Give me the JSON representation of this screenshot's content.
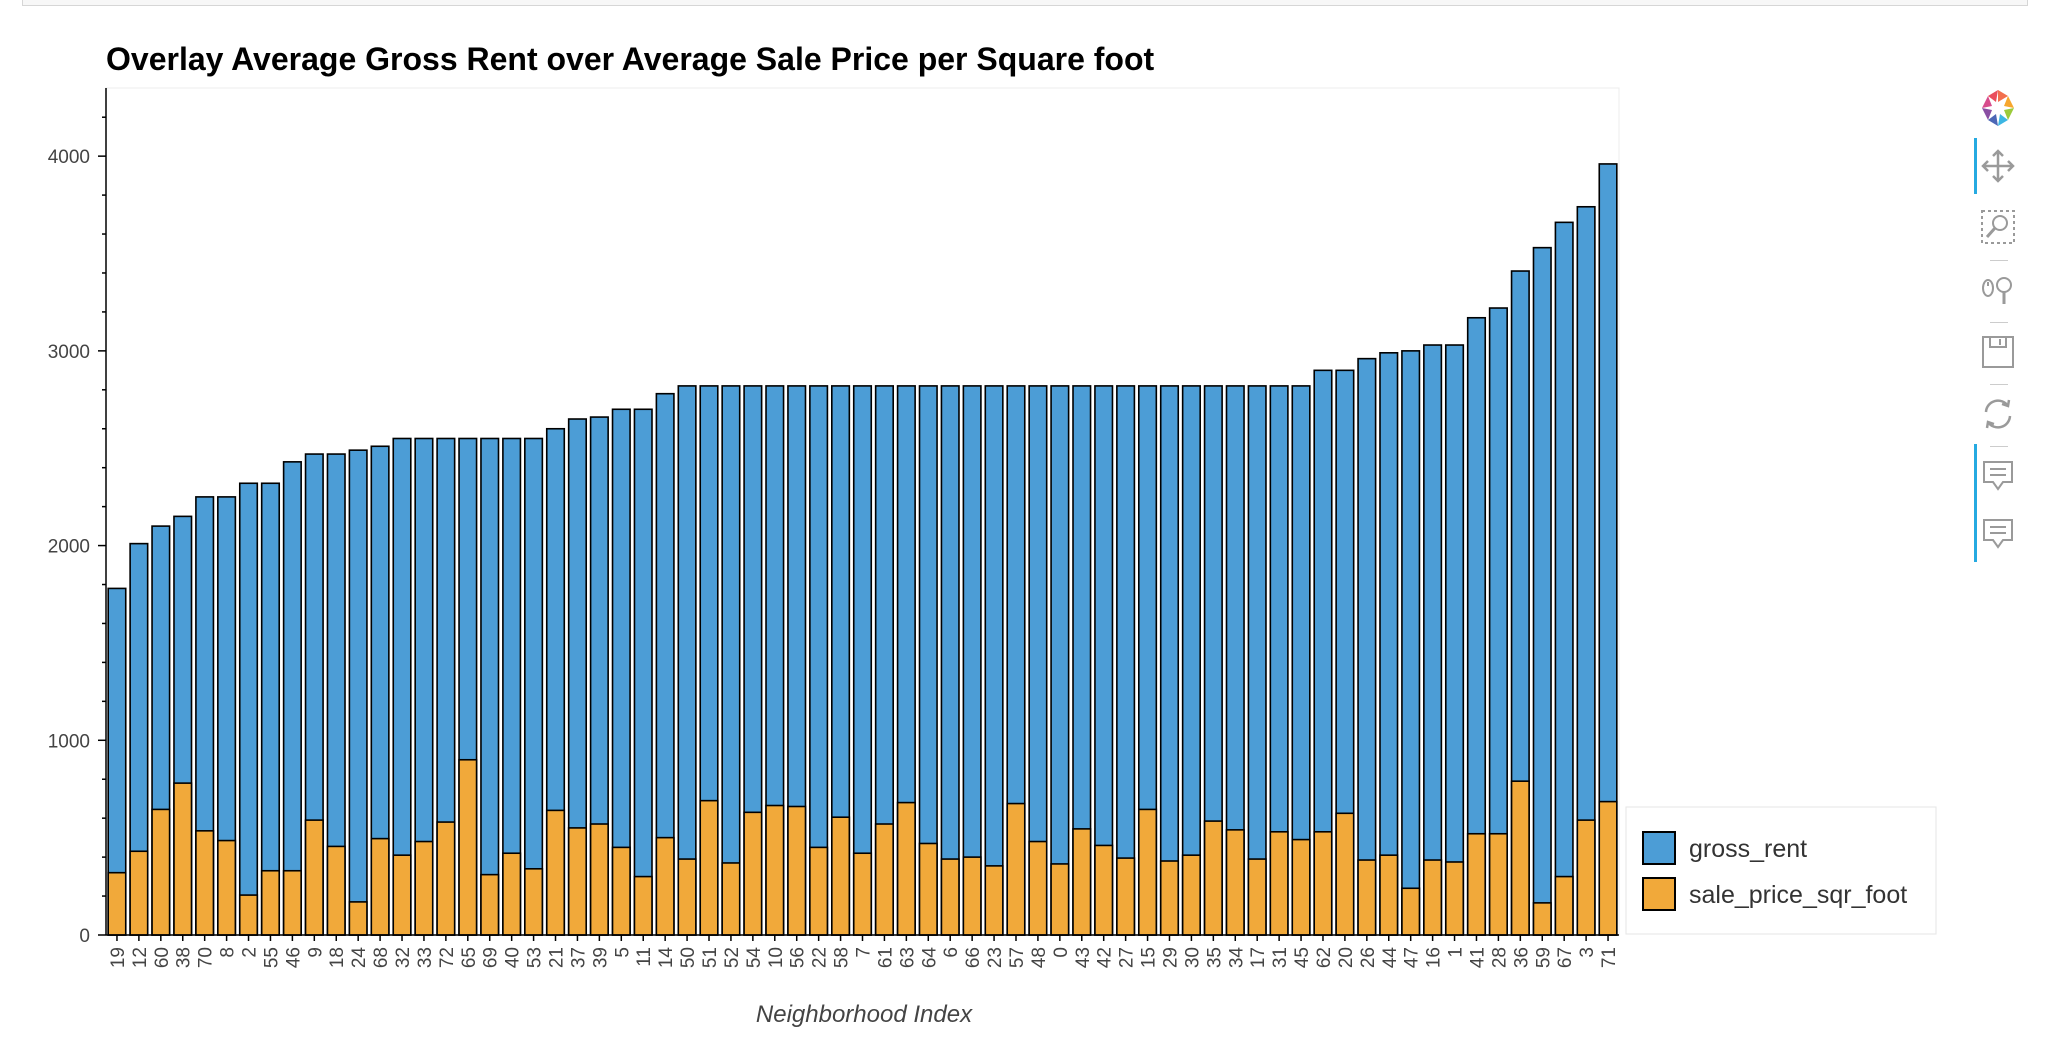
{
  "chart_data": {
    "type": "bar",
    "title": "Overlay Average Gross Rent over Average Sale Price per Square foot",
    "xlabel": "Neighborhood Index",
    "ylabel": "",
    "ylim": [
      0,
      4350
    ],
    "yticks": [
      0,
      1000,
      2000,
      3000,
      4000
    ],
    "grid": false,
    "legend_position": "bottom-right",
    "categories": [
      "19",
      "12",
      "60",
      "38",
      "70",
      "8",
      "2",
      "55",
      "46",
      "9",
      "18",
      "24",
      "68",
      "32",
      "33",
      "72",
      "65",
      "69",
      "40",
      "53",
      "21",
      "37",
      "39",
      "5",
      "11",
      "14",
      "50",
      "51",
      "52",
      "54",
      "10",
      "56",
      "22",
      "58",
      "7",
      "61",
      "63",
      "64",
      "6",
      "66",
      "23",
      "57",
      "48",
      "0",
      "43",
      "42",
      "27",
      "15",
      "29",
      "30",
      "35",
      "34",
      "17",
      "31",
      "45",
      "62",
      "20",
      "26",
      "44",
      "47",
      "16",
      "1",
      "41",
      "28",
      "36",
      "59",
      "67",
      "3",
      "71"
    ],
    "series": [
      {
        "name": "gross_rent",
        "color": "#4c9dd6",
        "values": [
          1780,
          2010,
          2100,
          2150,
          2250,
          2250,
          2320,
          2320,
          2430,
          2470,
          2470,
          2490,
          2510,
          2550,
          2550,
          2550,
          2550,
          2550,
          2550,
          2550,
          2600,
          2650,
          2660,
          2700,
          2700,
          2780,
          2820,
          2820,
          2820,
          2820,
          2820,
          2820,
          2820,
          2820,
          2820,
          2820,
          2820,
          2820,
          2820,
          2820,
          2820,
          2820,
          2820,
          2820,
          2820,
          2820,
          2820,
          2820,
          2820,
          2820,
          2820,
          2820,
          2820,
          2820,
          2820,
          2900,
          2900,
          2960,
          2990,
          3000,
          3030,
          3030,
          3170,
          3220,
          3410,
          3530,
          3660,
          3740,
          3960
        ]
      },
      {
        "name": "sale_price_sqr_foot",
        "color": "#f1a93a",
        "values": [
          320,
          430,
          645,
          780,
          535,
          485,
          205,
          330,
          330,
          590,
          455,
          170,
          495,
          410,
          480,
          580,
          900,
          310,
          420,
          340,
          640,
          550,
          570,
          450,
          300,
          500,
          390,
          690,
          370,
          630,
          665,
          660,
          450,
          605,
          420,
          570,
          680,
          470,
          390,
          400,
          355,
          675,
          480,
          365,
          545,
          460,
          395,
          645,
          380,
          410,
          585,
          540,
          390,
          530,
          490,
          530,
          625,
          385,
          410,
          240,
          385,
          375,
          520,
          520,
          790,
          165,
          300,
          590,
          685
        ]
      }
    ]
  },
  "toolbar": {
    "tools": [
      "bokeh-logo-icon",
      "pan-icon",
      "box-zoom-icon",
      "wheel-zoom-icon",
      "save-icon",
      "reset-icon",
      "hover-icon",
      "hover-icon"
    ]
  }
}
